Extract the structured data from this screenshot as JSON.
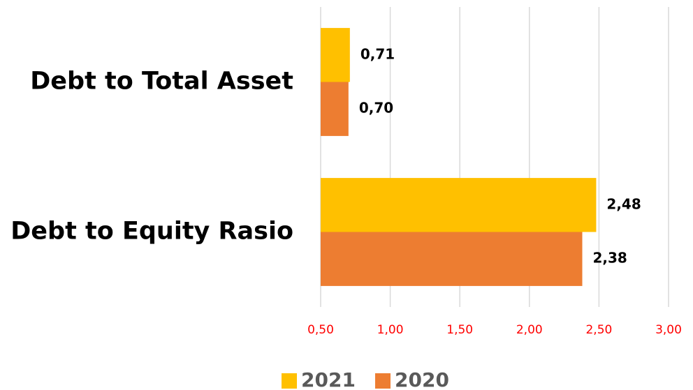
{
  "chart_data": {
    "type": "hbar",
    "categories": [
      "Debt to Total Asset",
      "Debt to Equity Rasio"
    ],
    "series": [
      {
        "name": "2021",
        "color": "#FFC000",
        "values": [
          0.71,
          2.48
        ],
        "value_labels": [
          "0,71",
          "2,48"
        ]
      },
      {
        "name": "2020",
        "color": "#ED7D31",
        "values": [
          0.7,
          2.38
        ],
        "value_labels": [
          "0,70",
          "2,38"
        ]
      }
    ],
    "xlim": [
      0.5,
      3.0
    ],
    "xticks": [
      {
        "value": 0.5,
        "label": "0,50"
      },
      {
        "value": 1.0,
        "label": "1,00"
      },
      {
        "value": 1.5,
        "label": "1,50"
      },
      {
        "value": 2.0,
        "label": "2,00"
      },
      {
        "value": 2.5,
        "label": "2,50"
      },
      {
        "value": 3.0,
        "label": "3,00"
      }
    ],
    "grid": true,
    "legend": "bottom"
  }
}
